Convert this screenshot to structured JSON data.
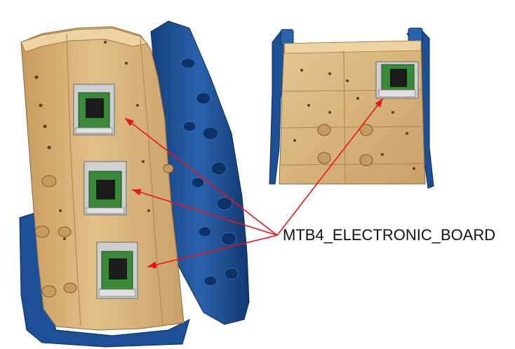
{
  "callout": {
    "label": "MTB4_ELECTRONIC_BOARD",
    "arrow_color": "#e8141b"
  },
  "colors": {
    "housing": "#d9b47a",
    "housing_shadow": "#b8905a",
    "cover": "#1d4f96",
    "board": "#3a8a3a",
    "chip": "#1c1c1c",
    "connector": "#c8c8c8"
  }
}
